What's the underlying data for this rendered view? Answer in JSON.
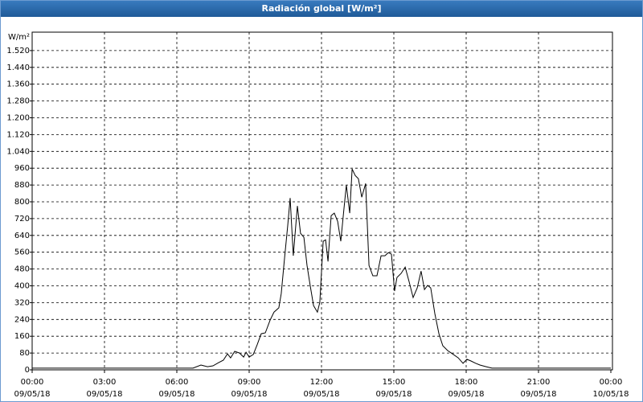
{
  "chart_data": {
    "type": "line",
    "title": "Radiación global [W/m²]",
    "y_label": "W/m²",
    "x": [
      0,
      6.67,
      7.0,
      7.27,
      7.5,
      7.73,
      7.93,
      8.1,
      8.23,
      8.4,
      8.6,
      8.77,
      8.87,
      9.0,
      9.17,
      9.33,
      9.5,
      9.67,
      9.87,
      10.03,
      10.23,
      10.33,
      10.47,
      10.6,
      10.7,
      10.83,
      11.0,
      11.13,
      11.27,
      11.4,
      11.53,
      11.67,
      11.83,
      11.93,
      12.07,
      12.17,
      12.27,
      12.4,
      12.53,
      12.67,
      12.8,
      12.93,
      13.03,
      13.17,
      13.27,
      13.4,
      13.53,
      13.67,
      13.83,
      13.97,
      14.13,
      14.3,
      14.47,
      14.63,
      14.77,
      14.9,
      15.03,
      15.13,
      15.3,
      15.47,
      15.63,
      15.8,
      15.97,
      16.13,
      16.27,
      16.4,
      16.53,
      16.7,
      16.87,
      17.03,
      17.23,
      17.43,
      17.67,
      17.87,
      18.03,
      18.2,
      18.4,
      18.57,
      18.83,
      19.07,
      24
    ],
    "series": [
      {
        "name": "Radiación global",
        "color": "#000000",
        "values": [
          8,
          8,
          23,
          15,
          19,
          34,
          46,
          76,
          57,
          88,
          80,
          61,
          84,
          61,
          73,
          119,
          172,
          176,
          237,
          275,
          295,
          363,
          535,
          688,
          818,
          543,
          780,
          650,
          631,
          497,
          402,
          306,
          275,
          321,
          612,
          619,
          516,
          734,
          746,
          707,
          612,
          765,
          880,
          746,
          956,
          925,
          910,
          822,
          887,
          497,
          448,
          448,
          543,
          543,
          558,
          551,
          375,
          440,
          459,
          489,
          421,
          344,
          390,
          470,
          382,
          402,
          390,
          268,
          172,
          115,
          92,
          76,
          57,
          31,
          50,
          42,
          31,
          23,
          15,
          8,
          8
        ]
      }
    ],
    "xlim": [
      0,
      24
    ],
    "xticks": [
      {
        "value": 0,
        "label": "00:00",
        "date": "09/05/18"
      },
      {
        "value": 3,
        "label": "03:00",
        "date": "09/05/18"
      },
      {
        "value": 6,
        "label": "06:00",
        "date": "09/05/18"
      },
      {
        "value": 9,
        "label": "09:00",
        "date": "09/05/18"
      },
      {
        "value": 12,
        "label": "12:00",
        "date": "09/05/18"
      },
      {
        "value": 15,
        "label": "15:00",
        "date": "09/05/18"
      },
      {
        "value": 18,
        "label": "18:00",
        "date": "09/05/18"
      },
      {
        "value": 21,
        "label": "21:00",
        "date": "09/05/18"
      },
      {
        "value": 24,
        "label": "00:00",
        "date": "10/05/18"
      }
    ],
    "ylim": [
      0,
      1600
    ],
    "yticks": [
      0,
      80,
      160,
      240,
      320,
      400,
      480,
      560,
      640,
      720,
      800,
      880,
      960,
      {
        "value": 1040,
        "label": "1.040"
      },
      {
        "value": 1120,
        "label": "1.120"
      },
      {
        "value": 1200,
        "label": "1.200"
      },
      {
        "value": 1280,
        "label": "1.280"
      },
      {
        "value": 1360,
        "label": "1.360"
      },
      {
        "value": 1440,
        "label": "1.440"
      },
      {
        "value": 1520,
        "label": "1.520"
      }
    ],
    "grid": true
  }
}
